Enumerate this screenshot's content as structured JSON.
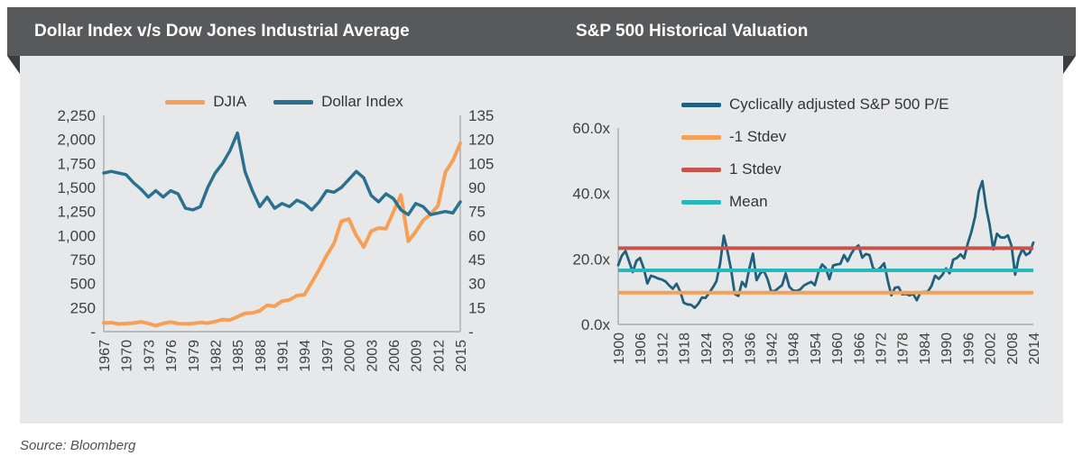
{
  "header": {
    "left_title": "Dollar Index v/s Dow Jones Industrial Average",
    "right_title": "S&P 500 Historical Valuation"
  },
  "footer": {
    "source": "Source: Bloomberg"
  },
  "colors": {
    "ribbon": "#58595B",
    "ribbon_fold": "#3B3C3E",
    "panel_bg": "#E7E8E9",
    "axis_line": "#A9ABAE",
    "tick_text": "#3F4041",
    "djia": "#F5A056",
    "dollar_index": "#2A7090",
    "cape": "#1F607F",
    "minus_1_stdev": "#F5A056",
    "plus_1_stdev": "#C7544C",
    "mean": "#28B7BC"
  },
  "chart_data": [
    {
      "type": "line",
      "title": "Dollar Index v/s Dow Jones Industrial Average",
      "x_start": 1967,
      "x_end": 2015,
      "x_step": 1,
      "x_ticks": [
        1967,
        1970,
        1973,
        1976,
        1979,
        1982,
        1985,
        1988,
        1991,
        1994,
        1997,
        2000,
        2003,
        2006,
        2009,
        2012,
        2015
      ],
      "left_axis": {
        "min": 0,
        "max": 2250,
        "tick_values": [
          2250,
          2000,
          1750,
          1500,
          1250,
          1000,
          750,
          500,
          250,
          0
        ],
        "tick_labels": [
          "2,250",
          "2,000",
          "1,750",
          "1,500",
          "1,250",
          "1,000",
          "750",
          "500",
          "250",
          "-"
        ]
      },
      "right_axis": {
        "min": 0,
        "max": 135,
        "tick_values": [
          135,
          120,
          105,
          90,
          75,
          60,
          45,
          30,
          15,
          0
        ],
        "tick_labels": [
          "135",
          "120",
          "105",
          "90",
          "75",
          "60",
          "45",
          "30",
          "15",
          "-"
        ]
      },
      "series": [
        {
          "name": "DJIA",
          "axis": "left",
          "color": "#F5A056",
          "width": 4,
          "values": [
            90,
            94,
            80,
            84,
            89,
            102,
            85,
            62,
            85,
            100,
            83,
            81,
            84,
            96,
            88,
            105,
            126,
            121,
            155,
            190,
            194,
            217,
            275,
            263,
            317,
            330,
            375,
            383,
            512,
            645,
            791,
            918,
            1150,
            1170,
            1000,
            880,
            1045,
            1078,
            1072,
            1246,
            1420,
            940,
            1040,
            1158,
            1222,
            1310,
            1658,
            1780,
            1960
          ]
        },
        {
          "name": "Dollar Index",
          "axis": "right",
          "color": "#2A7090",
          "width": 3.5,
          "values": [
            99,
            100,
            99,
            98,
            93,
            89,
            84,
            88,
            84,
            88,
            86,
            77,
            76,
            78,
            90,
            99,
            105,
            113,
            124,
            100,
            88,
            78,
            84,
            77,
            80,
            78,
            82,
            80,
            76,
            81,
            88,
            87,
            90,
            95,
            100,
            96,
            85,
            81,
            86,
            83,
            76,
            73,
            80,
            78,
            73,
            74,
            75,
            74,
            81
          ]
        }
      ],
      "legend_position": "top",
      "grid": false
    },
    {
      "type": "line",
      "title": "S&P 500 Historical Valuation",
      "x_start": 1900,
      "x_end": 2014,
      "x_step": 1,
      "x_ticks": [
        1900,
        1906,
        1912,
        1918,
        1924,
        1930,
        1936,
        1942,
        1948,
        1954,
        1960,
        1966,
        1972,
        1978,
        1984,
        1990,
        1996,
        2002,
        2008,
        2014
      ],
      "y_axis": {
        "min": 0,
        "max": 60,
        "tick_values": [
          60,
          40,
          20,
          0
        ],
        "tick_labels": [
          "60.0x",
          "40.0x",
          "20.0x",
          "0.0x"
        ]
      },
      "series": [
        {
          "name": "Cyclically adjusted S&P 500 P/E",
          "color": "#1F607F",
          "width": 2.8,
          "values": [
            18.1,
            21.0,
            22.4,
            19.2,
            16.0,
            19.4,
            20.3,
            17.2,
            12.5,
            14.9,
            14.5,
            14.0,
            13.7,
            13.1,
            11.9,
            10.9,
            12.4,
            10.1,
            6.6,
            6.1,
            6.0,
            5.1,
            6.3,
            8.2,
            8.1,
            9.7,
            11.3,
            13.2,
            18.8,
            27.1,
            22.3,
            16.7,
            9.3,
            8.7,
            13.0,
            11.5,
            17.1,
            21.6,
            13.5,
            15.6,
            16.4,
            13.9,
            10.1,
            10.2,
            11.1,
            12.0,
            15.6,
            11.5,
            10.4,
            10.2,
            10.7,
            11.9,
            12.5,
            13.0,
            12.0,
            16.0,
            18.3,
            17.2,
            13.8,
            18.0,
            18.3,
            18.5,
            21.2,
            19.3,
            21.6,
            23.3,
            24.1,
            20.4,
            21.5,
            21.2,
            17.1,
            16.5,
            17.3,
            18.7,
            13.5,
            8.9,
            11.2,
            11.4,
            9.2,
            9.3,
            8.9,
            9.3,
            7.4,
            9.8,
            9.9,
            10.0,
            11.7,
            14.9,
            13.9,
            15.1,
            17.1,
            15.6,
            19.8,
            20.3,
            21.4,
            20.2,
            24.8,
            28.3,
            32.9,
            40.6,
            43.8,
            36.0,
            30.3,
            22.9,
            27.7,
            26.6,
            26.5,
            27.2,
            24.0,
            15.2,
            20.5,
            23.0,
            21.2,
            21.9,
            25.0
          ]
        },
        {
          "name": "-1 Stdev",
          "color": "#F5A056",
          "width": 4,
          "constant": 9.7
        },
        {
          "name": "1 Stdev",
          "color": "#C7544C",
          "width": 4,
          "constant": 23.3
        },
        {
          "name": "Mean",
          "color": "#28B7BC",
          "width": 4,
          "constant": 16.5
        }
      ],
      "legend_position": "top-left-inside",
      "grid": false
    }
  ]
}
